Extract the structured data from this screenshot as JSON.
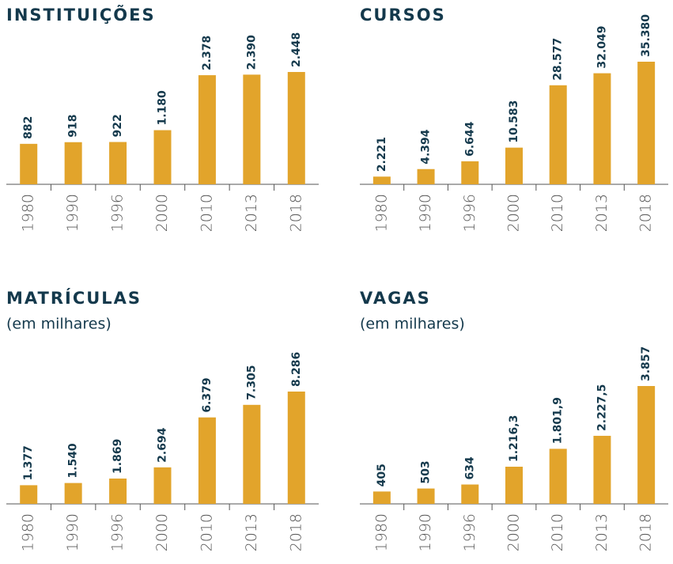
{
  "chart_data": [
    {
      "type": "bar",
      "title": "INSTITUIÇÕES",
      "color": "#e2a42b",
      "categories": [
        "1980",
        "1990",
        "1996",
        "2000",
        "2010",
        "2013",
        "2018"
      ],
      "values": [
        882,
        918,
        922,
        1180,
        2378,
        2390,
        2448
      ],
      "value_labels": [
        "882",
        "918",
        "922",
        "1.180",
        "2.378",
        "2.390",
        "2.448"
      ]
    },
    {
      "type": "bar",
      "title": "CURSOS",
      "color": "#e2a42b",
      "categories": [
        "1980",
        "1990",
        "1996",
        "2000",
        "2010",
        "2013",
        "2018"
      ],
      "values": [
        2221,
        4394,
        6644,
        10583,
        28577,
        32049,
        35380
      ],
      "value_labels": [
        "2.221",
        "4.394",
        "6.644",
        "10.583",
        "28.577",
        "32.049",
        "35.380"
      ]
    },
    {
      "type": "bar",
      "title": "MATRÍCULAS",
      "subtitle": "(em milhares)",
      "color": "#e2a42b",
      "categories": [
        "1980",
        "1990",
        "1996",
        "2000",
        "2010",
        "2013",
        "2018"
      ],
      "values": [
        1377,
        1540,
        1869,
        2694,
        6379,
        7305,
        8286
      ],
      "value_labels": [
        "1.377",
        "1.540",
        "1.869",
        "2.694",
        "6.379",
        "7.305",
        "8.286"
      ]
    },
    {
      "type": "bar",
      "title": "VAGAS",
      "subtitle": "(em milhares)",
      "color": "#e2a42b",
      "categories": [
        "1980",
        "1990",
        "1996",
        "2000",
        "2010",
        "2013",
        "2018"
      ],
      "values": [
        405,
        503,
        634,
        1216.3,
        1801.9,
        2227.5,
        3857
      ],
      "value_labels": [
        "405",
        "503",
        "634",
        "1.216,3",
        "1.801,9",
        "2.227,5",
        "3.857"
      ]
    }
  ]
}
